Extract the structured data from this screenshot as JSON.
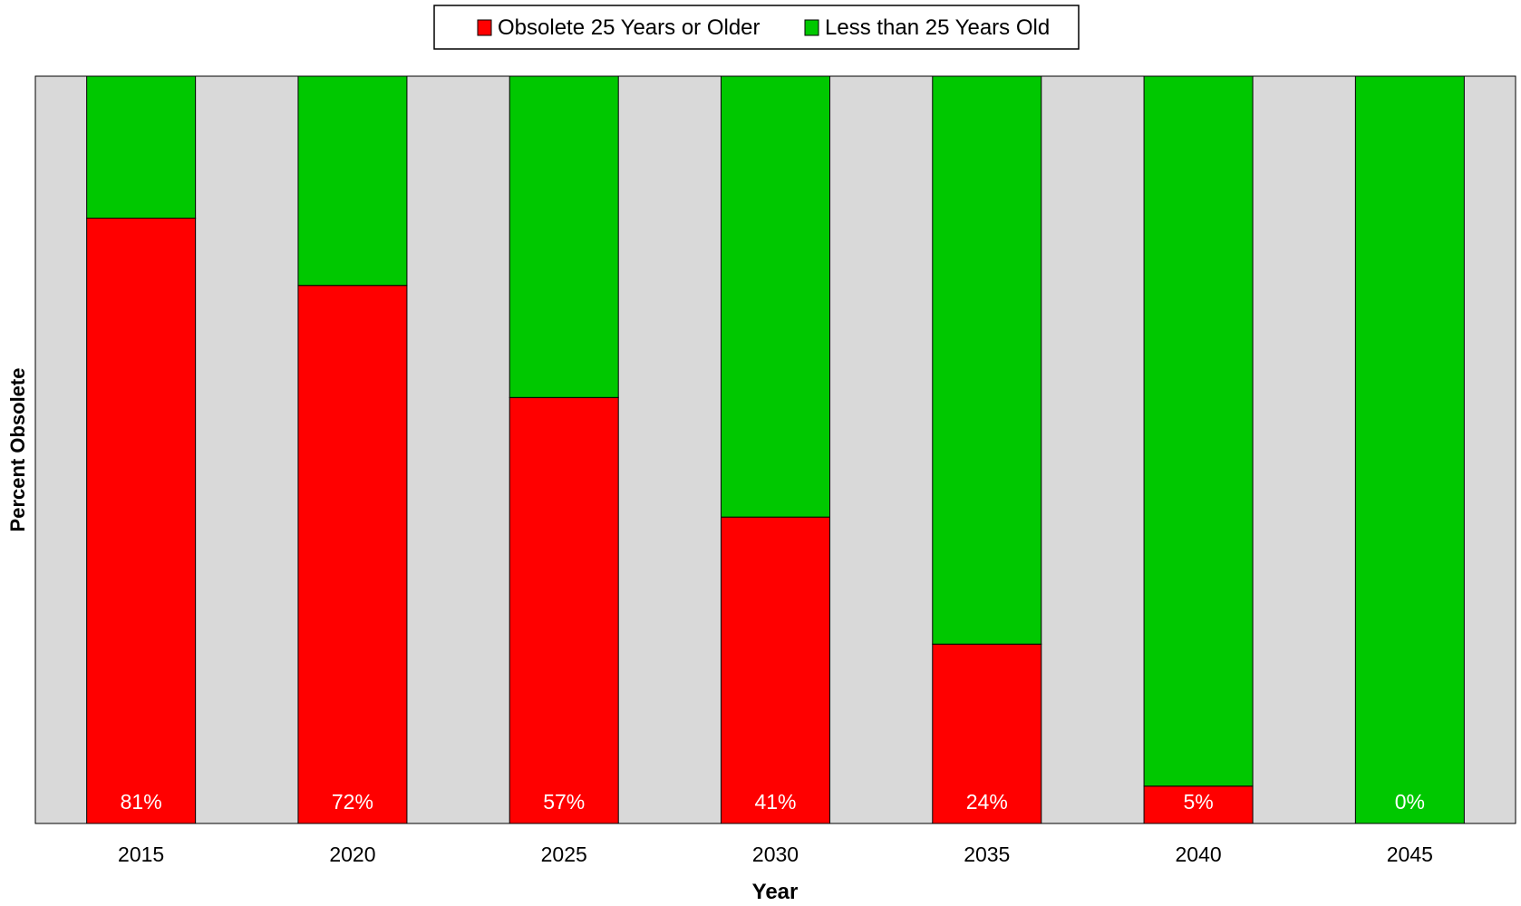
{
  "chart_data": {
    "type": "bar",
    "stacked": true,
    "percent_stacked": true,
    "categories": [
      "2015",
      "2020",
      "2025",
      "2030",
      "2035",
      "2040",
      "2045"
    ],
    "series": [
      {
        "name": "Obsolete 25 Years or Older",
        "values": [
          81,
          72,
          57,
          41,
          24,
          5,
          0
        ],
        "color": "#ff0000"
      },
      {
        "name": "Less than 25 Years Old",
        "values": [
          19,
          28,
          43,
          59,
          76,
          95,
          100
        ],
        "color": "#00c800"
      }
    ],
    "data_labels": [
      "81%",
      "72%",
      "57%",
      "41%",
      "24%",
      "5%",
      "0%"
    ],
    "xlabel": "Year",
    "ylabel": "Percent Obsolete",
    "ylim": [
      0,
      100
    ],
    "legend_position": "top",
    "plot_background": "#d9d9d9",
    "grid": false
  }
}
